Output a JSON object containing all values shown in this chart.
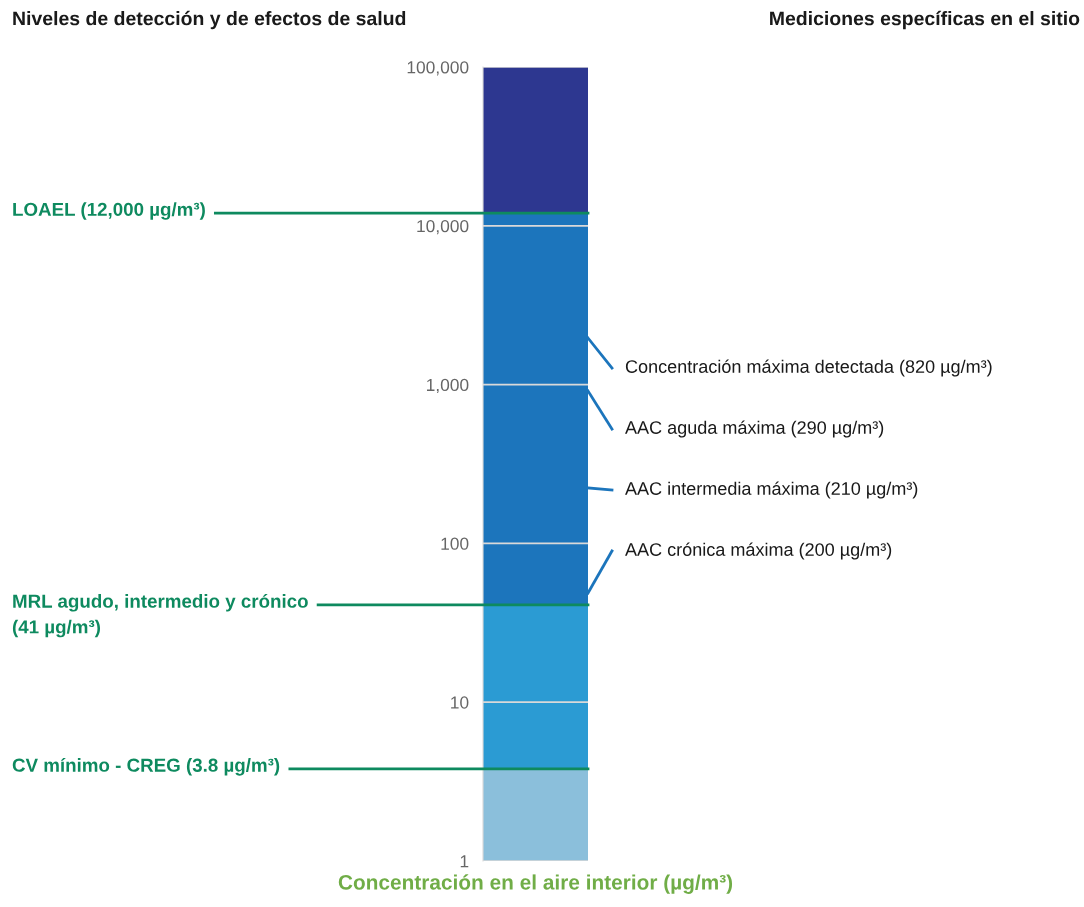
{
  "chart_data": {
    "type": "bar",
    "title": "Niveles de detección y de efectos de salud",
    "subtitle": "Mediciones específicas en el sitio",
    "xlabel": "Concentración en el aire interior (µg/m³)",
    "categories": [
      null
    ],
    "log": true,
    "ylim": [
      1,
      100000
    ],
    "yticks": [
      1,
      10,
      100,
      {
        "value": 1000,
        "label": "1,000"
      },
      {
        "value": 10000,
        "label": "10,000"
      },
      {
        "value": 100000,
        "label": "100,000"
      }
    ],
    "grid": "y",
    "series": [
      {
        "color": "#8bbfdb",
        "base": [
          1
        ],
        "values": [
          2.8
        ]
      },
      {
        "color": "#2b9bd3",
        "base": [
          3.8
        ],
        "values": [
          37.2
        ]
      },
      {
        "color": "#1c75bc",
        "base": [
          41
        ],
        "values": [
          11959
        ]
      },
      {
        "color": "#2d3790",
        "base": [
          12000
        ],
        "values": [
          88000
        ]
      }
    ],
    "ref_lines": [
      {
        "axis": "y",
        "value": 12000,
        "label": "LOAEL (12,000 µg/m³)",
        "color": "#0e8a5f"
      },
      {
        "axis": "y",
        "value": 41,
        "label": "MRL agudo, intermedio y crónico\n(41 µg/m³)",
        "color": "#0e8a5f"
      },
      {
        "axis": "y",
        "value": 3.8,
        "label": "CV mínimo - CREG (3.8 µg/m³)",
        "color": "#0e8a5f"
      }
    ],
    "annotations": [
      "Concentración máxima detectada (820 µg/m³)",
      "AAC aguda máxima (290 µg/m³)",
      "AAC intermedia máxima (210 µg/m³)",
      "AAC crónica máxima (200 µg/m³)"
    ]
  }
}
